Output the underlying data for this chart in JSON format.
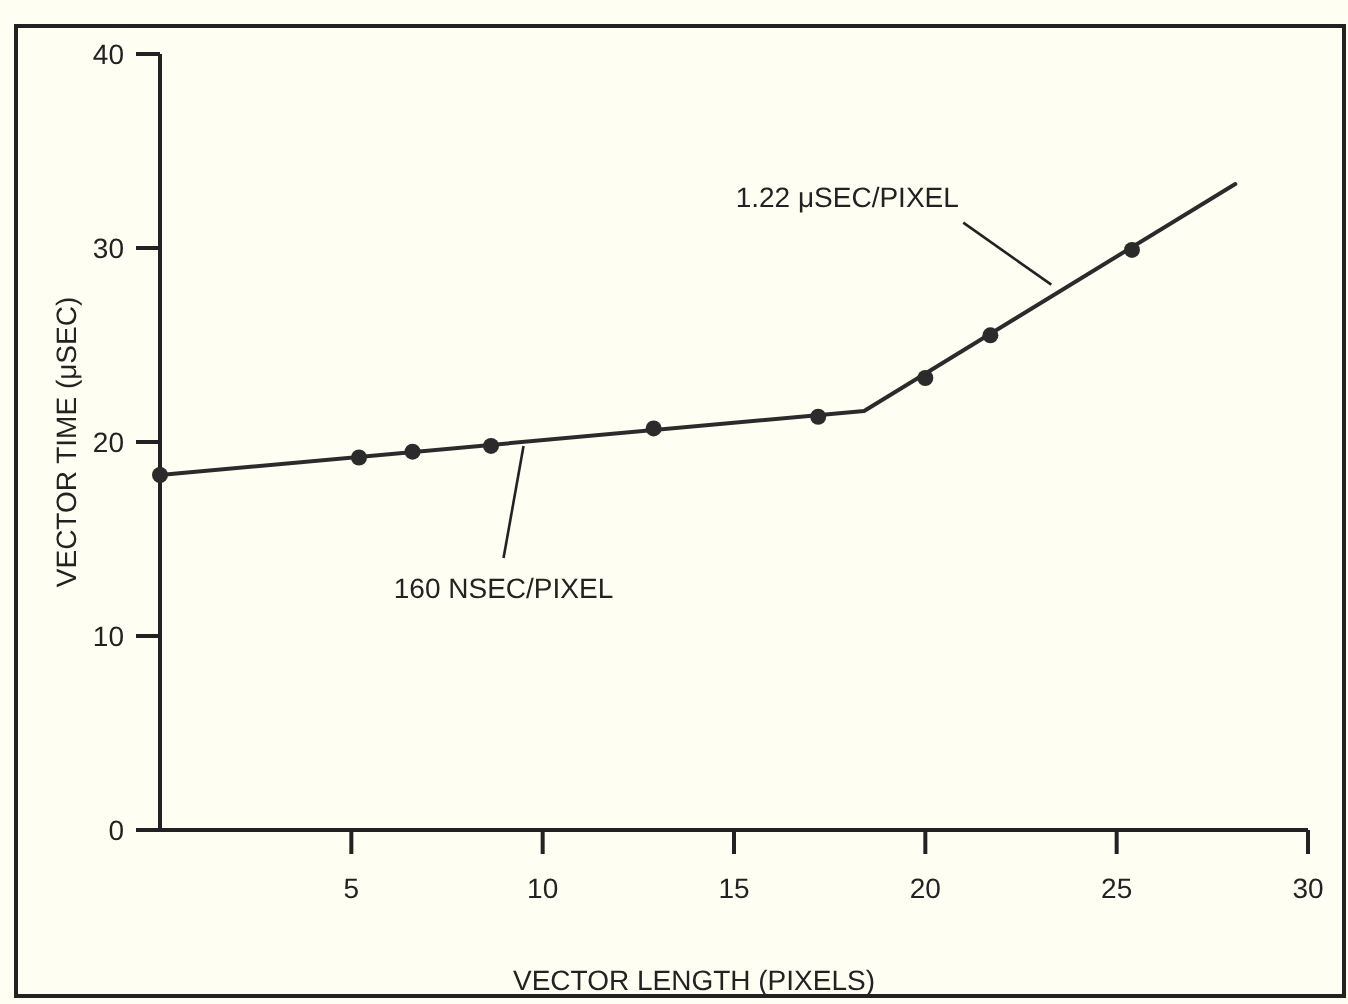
{
  "chart_data": {
    "type": "line",
    "xlabel": "VECTOR LENGTH (PIXELS)",
    "ylabel": "VECTOR TIME (μSEC)",
    "xlim": [
      0,
      30
    ],
    "ylim": [
      0,
      40
    ],
    "xticks": [
      5,
      10,
      15,
      20,
      25,
      30
    ],
    "yticks": [
      0,
      10,
      20,
      30,
      40
    ],
    "grid": false,
    "series": [
      {
        "color": "#2b2b2b",
        "marker": "none",
        "x": [
          0,
          18.4,
          28.1
        ],
        "values": [
          18.3,
          21.6,
          33.3
        ]
      },
      {
        "type": "scatter",
        "color": "#2b2b2b",
        "marker": "circle",
        "x": [
          0,
          5.2,
          6.6,
          8.65,
          12.9,
          17.2,
          20.0,
          21.7,
          25.4
        ],
        "values": [
          18.3,
          19.2,
          19.5,
          19.8,
          20.7,
          21.3,
          23.3,
          25.5,
          29.9
        ]
      }
    ],
    "annotations": [
      {
        "text": "160 NSEC/PIXEL",
        "x": 9.5,
        "y": 20
      },
      {
        "text": "1.22 μSEC/PIXEL",
        "x": 23.5,
        "y": 27.8
      }
    ]
  }
}
